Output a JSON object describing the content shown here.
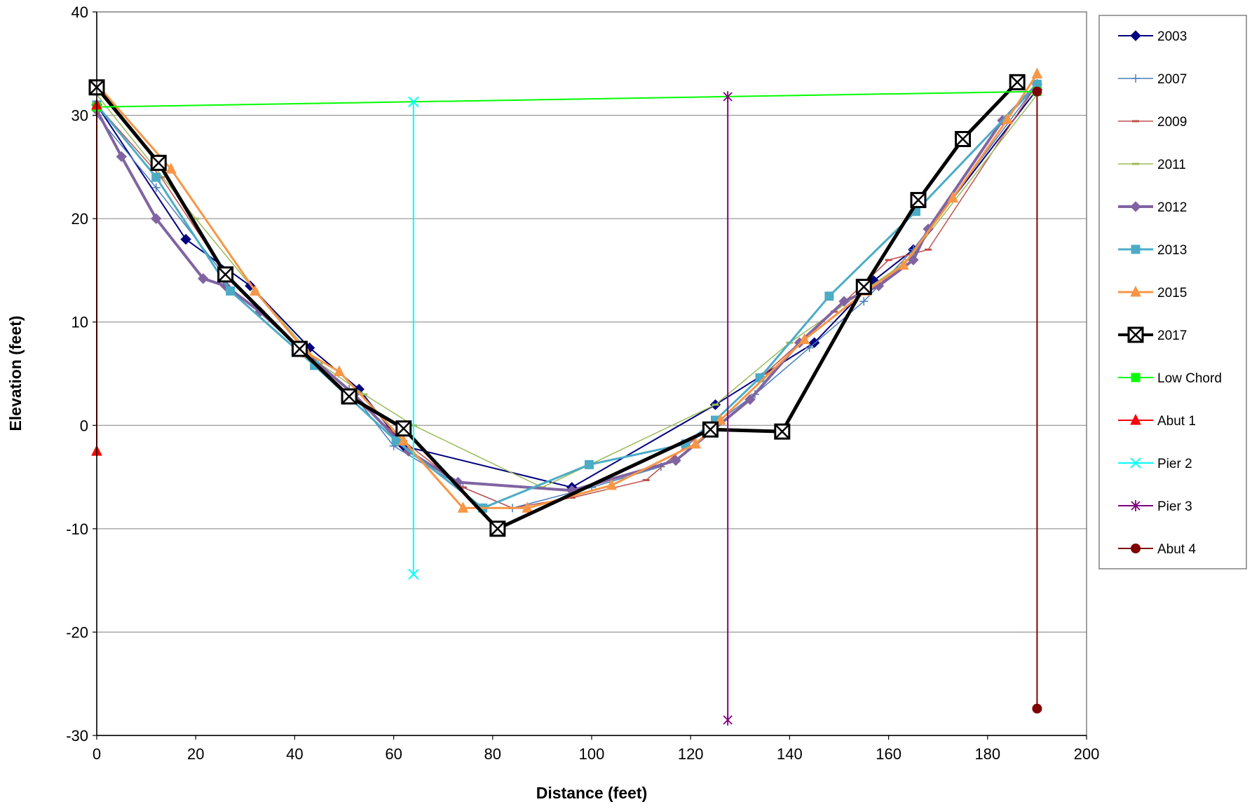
{
  "chart_data": {
    "type": "line",
    "title": "",
    "xlabel": "Distance (feet)",
    "ylabel": "Elevation (feet)",
    "xlim": [
      0,
      200
    ],
    "ylim": [
      -30,
      40
    ],
    "xticks": [
      "0",
      "20",
      "40",
      "60",
      "80",
      "100",
      "120",
      "140",
      "160",
      "180",
      "200"
    ],
    "yticks": [
      "40",
      "30",
      "20",
      "10",
      "0",
      "-10",
      "-20",
      "-30"
    ],
    "grid": "horizontal",
    "legend_position": "right",
    "series": [
      {
        "name": "2003",
        "color": "#000080",
        "marker": "diamond",
        "width": 2,
        "points": [
          [
            0,
            31
          ],
          [
            18,
            18
          ],
          [
            31,
            13.5
          ],
          [
            43,
            7.5
          ],
          [
            53,
            3.5
          ],
          [
            62,
            -2
          ],
          [
            96,
            -6
          ],
          [
            125,
            2
          ],
          [
            145,
            8
          ],
          [
            157,
            14
          ],
          [
            165,
            17
          ],
          [
            190,
            32.5
          ]
        ]
      },
      {
        "name": "2007",
        "color": "#4a7ebb",
        "marker": "plus",
        "width": 1.5,
        "points": [
          [
            0,
            30
          ],
          [
            12,
            23
          ],
          [
            25,
            15
          ],
          [
            41,
            7.5
          ],
          [
            51,
            3.5
          ],
          [
            60,
            -2
          ],
          [
            74,
            -6
          ],
          [
            84,
            -8
          ],
          [
            100,
            -6
          ],
          [
            114,
            -4
          ],
          [
            123,
            -0.5
          ],
          [
            133,
            3
          ],
          [
            144,
            7.5
          ],
          [
            155,
            12
          ],
          [
            165,
            17
          ],
          [
            190,
            33
          ]
        ]
      },
      {
        "name": "2009",
        "color": "#c0504d",
        "marker": "dash",
        "width": 1.5,
        "points": [
          [
            0,
            31
          ],
          [
            13,
            24
          ],
          [
            27,
            14
          ],
          [
            41,
            7.5
          ],
          [
            51,
            3
          ],
          [
            62,
            -1.5
          ],
          [
            74,
            -6
          ],
          [
            84,
            -8
          ],
          [
            96,
            -7
          ],
          [
            111,
            -5.3
          ],
          [
            124,
            0
          ],
          [
            135,
            5
          ],
          [
            149,
            11
          ],
          [
            160,
            16
          ],
          [
            168,
            17
          ],
          [
            190,
            33
          ]
        ]
      },
      {
        "name": "2011",
        "color": "#9bbb59",
        "marker": "dash",
        "width": 1.5,
        "points": [
          [
            0,
            32
          ],
          [
            20,
            20
          ],
          [
            32,
            13
          ],
          [
            45,
            6
          ],
          [
            54,
            3
          ],
          [
            64,
            0
          ],
          [
            90,
            -6
          ],
          [
            125,
            2
          ],
          [
            140,
            8
          ],
          [
            164,
            16
          ],
          [
            190,
            32
          ]
        ]
      },
      {
        "name": "2012",
        "color": "#8064a2",
        "marker": "diamond",
        "width": 4,
        "points": [
          [
            0,
            30.5
          ],
          [
            5,
            26
          ],
          [
            12,
            20
          ],
          [
            21.5,
            14.2
          ],
          [
            26,
            13.5
          ],
          [
            33,
            11
          ],
          [
            41,
            7.5
          ],
          [
            52,
            3
          ],
          [
            63,
            -2.5
          ],
          [
            73,
            -5.5
          ],
          [
            96,
            -6.3
          ],
          [
            117,
            -3.4
          ],
          [
            132,
            2.5
          ],
          [
            142,
            8
          ],
          [
            151,
            12
          ],
          [
            158,
            13.5
          ],
          [
            165,
            16
          ],
          [
            168,
            19
          ],
          [
            183,
            29.5
          ],
          [
            190,
            33
          ]
        ]
      },
      {
        "name": "2013",
        "color": "#4bacc6",
        "marker": "square",
        "width": 3,
        "points": [
          [
            0,
            31
          ],
          [
            12,
            24
          ],
          [
            27,
            13
          ],
          [
            44,
            5.8
          ],
          [
            60.5,
            -1.5
          ],
          [
            78,
            -8
          ],
          [
            99.5,
            -3.8
          ],
          [
            119,
            -1.8
          ],
          [
            125,
            0.5
          ],
          [
            134,
            4.6
          ],
          [
            148,
            12.5
          ],
          [
            165.5,
            20.7
          ],
          [
            190,
            33
          ]
        ]
      },
      {
        "name": "2015",
        "color": "#f79646",
        "marker": "triangle",
        "width": 3,
        "points": [
          [
            0,
            33
          ],
          [
            15,
            24.8
          ],
          [
            32,
            13
          ],
          [
            42.5,
            7
          ],
          [
            49,
            5.2
          ],
          [
            62,
            -1.5
          ],
          [
            74,
            -8
          ],
          [
            87,
            -8
          ],
          [
            104,
            -5.8
          ],
          [
            121,
            -1.8
          ],
          [
            126,
            0.5
          ],
          [
            143,
            8.3
          ],
          [
            155.5,
            13
          ],
          [
            163,
            15.5
          ],
          [
            173,
            22
          ],
          [
            184,
            29.6
          ],
          [
            190,
            34
          ]
        ]
      },
      {
        "name": "2017",
        "color": "#000000",
        "marker": "boxx",
        "width": 5,
        "points": [
          [
            0,
            32.7
          ],
          [
            12.5,
            25.4
          ],
          [
            26,
            14.6
          ],
          [
            41,
            7.4
          ],
          [
            51,
            2.8
          ],
          [
            62,
            -0.3
          ],
          [
            81,
            -10
          ],
          [
            124,
            -0.4
          ],
          [
            138.5,
            -0.6
          ],
          [
            155,
            13.4
          ],
          [
            166,
            21.8
          ],
          [
            175,
            27.7
          ],
          [
            186,
            33.2
          ]
        ]
      },
      {
        "name": "Low Chord",
        "color": "#00ff00",
        "marker": "square",
        "width": 2,
        "points": [
          [
            0,
            30.8
          ],
          [
            190,
            32.3
          ]
        ]
      },
      {
        "name": "Abut 1",
        "color": "#ff0000",
        "marker": "triangle",
        "width": 2,
        "points": [
          [
            0,
            31
          ],
          [
            0,
            -2.5
          ]
        ]
      },
      {
        "name": "Pier 2",
        "color": "#00ffff",
        "marker": "x",
        "width": 2,
        "points": [
          [
            64,
            31.3
          ],
          [
            64,
            -14.4
          ]
        ]
      },
      {
        "name": "Pier 3",
        "color": "#800080",
        "marker": "star",
        "width": 2,
        "points": [
          [
            127.5,
            31.8
          ],
          [
            127.5,
            -28.5
          ]
        ]
      },
      {
        "name": "Abut 4",
        "color": "#800000",
        "marker": "circle",
        "width": 2,
        "points": [
          [
            190,
            32.3
          ],
          [
            190,
            -27.4
          ]
        ]
      }
    ]
  }
}
